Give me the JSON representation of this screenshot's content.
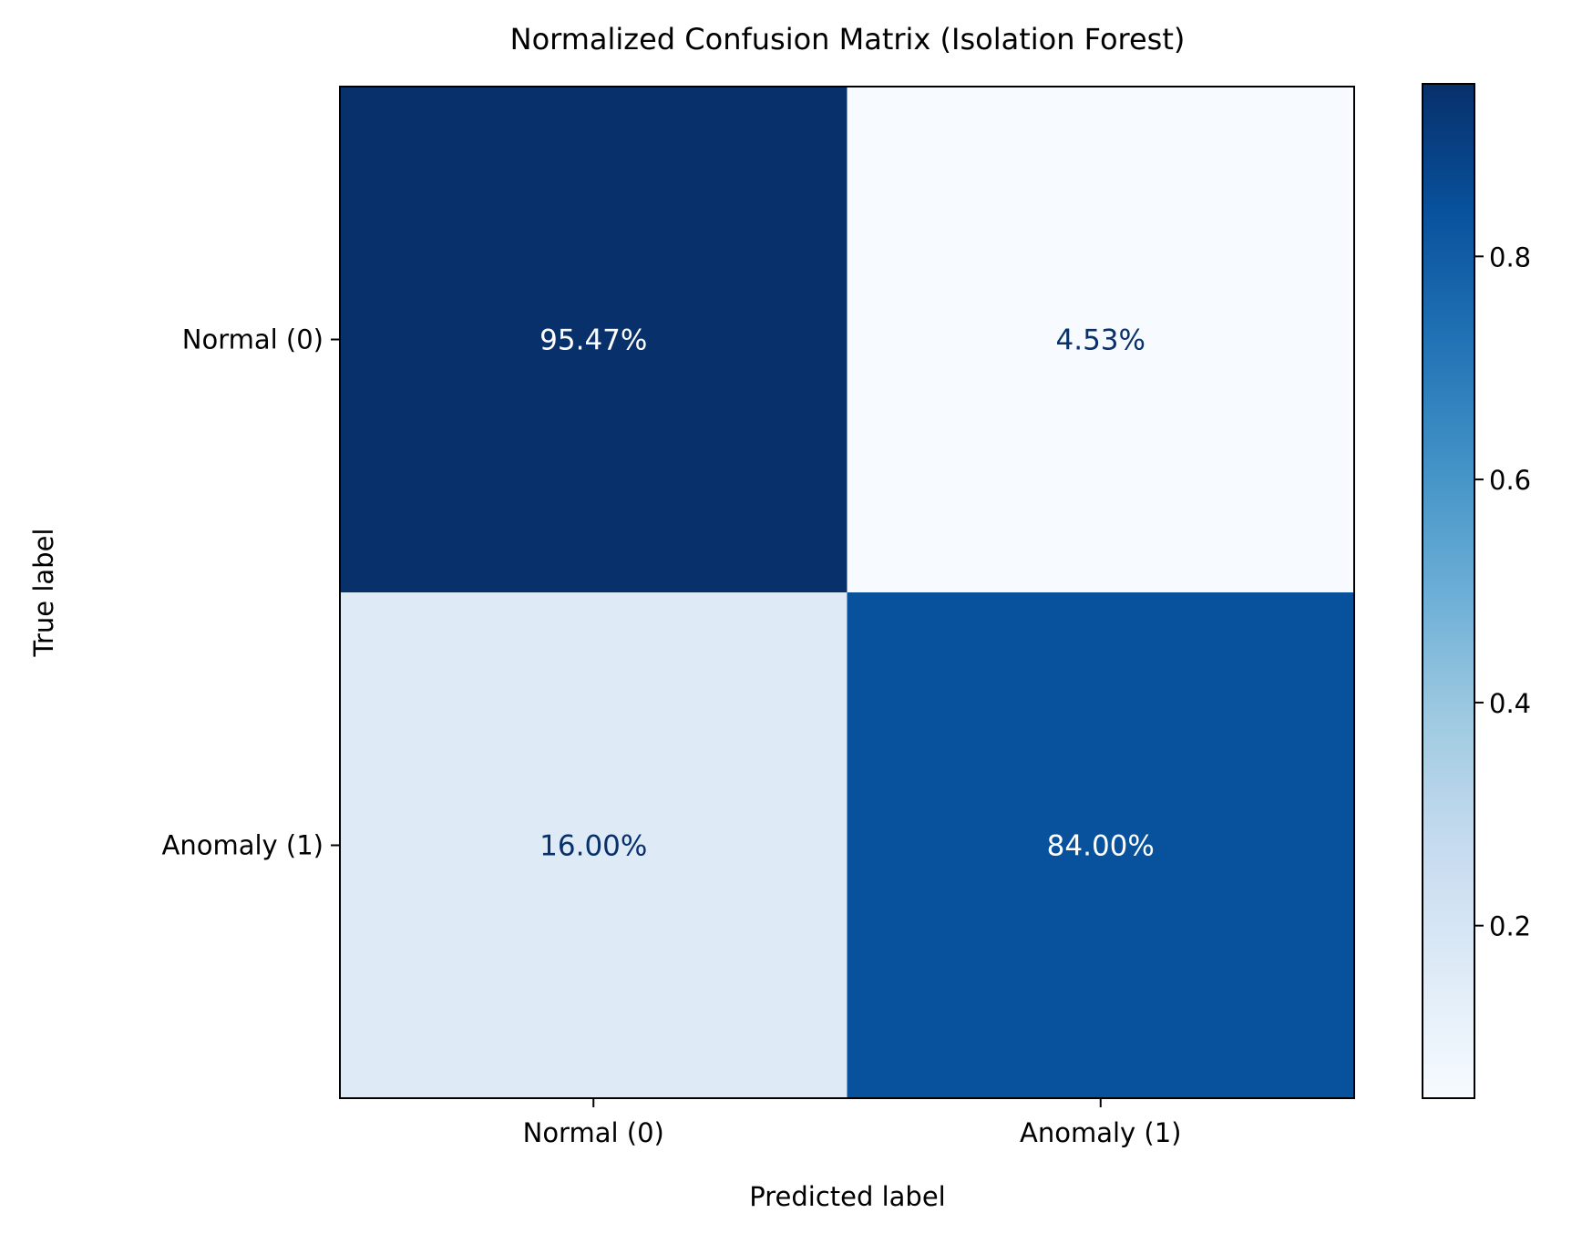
{
  "chart_data": {
    "type": "heatmap",
    "title": "Normalized Confusion Matrix (Isolation Forest)",
    "xlabel": "Predicted label",
    "ylabel": "True label",
    "x_categories": [
      "Normal (0)",
      "Anomaly (1)"
    ],
    "y_categories": [
      "Normal (0)",
      "Anomaly (1)"
    ],
    "values": [
      [
        0.9547,
        0.0453
      ],
      [
        0.16,
        0.84
      ]
    ],
    "cell_labels": [
      [
        "95.47%",
        "4.53%"
      ],
      [
        "16.00%",
        "84.00%"
      ]
    ],
    "colormap": "Blues",
    "colorbar": {
      "range": [
        0.0453,
        0.9547
      ],
      "ticks": [
        0.2,
        0.4,
        0.6,
        0.8
      ],
      "tick_labels": [
        "0.2",
        "0.4",
        "0.6",
        "0.8"
      ]
    },
    "cell_text_colors": {
      "on_dark": "#ffffff",
      "on_light": "#08306b"
    }
  }
}
